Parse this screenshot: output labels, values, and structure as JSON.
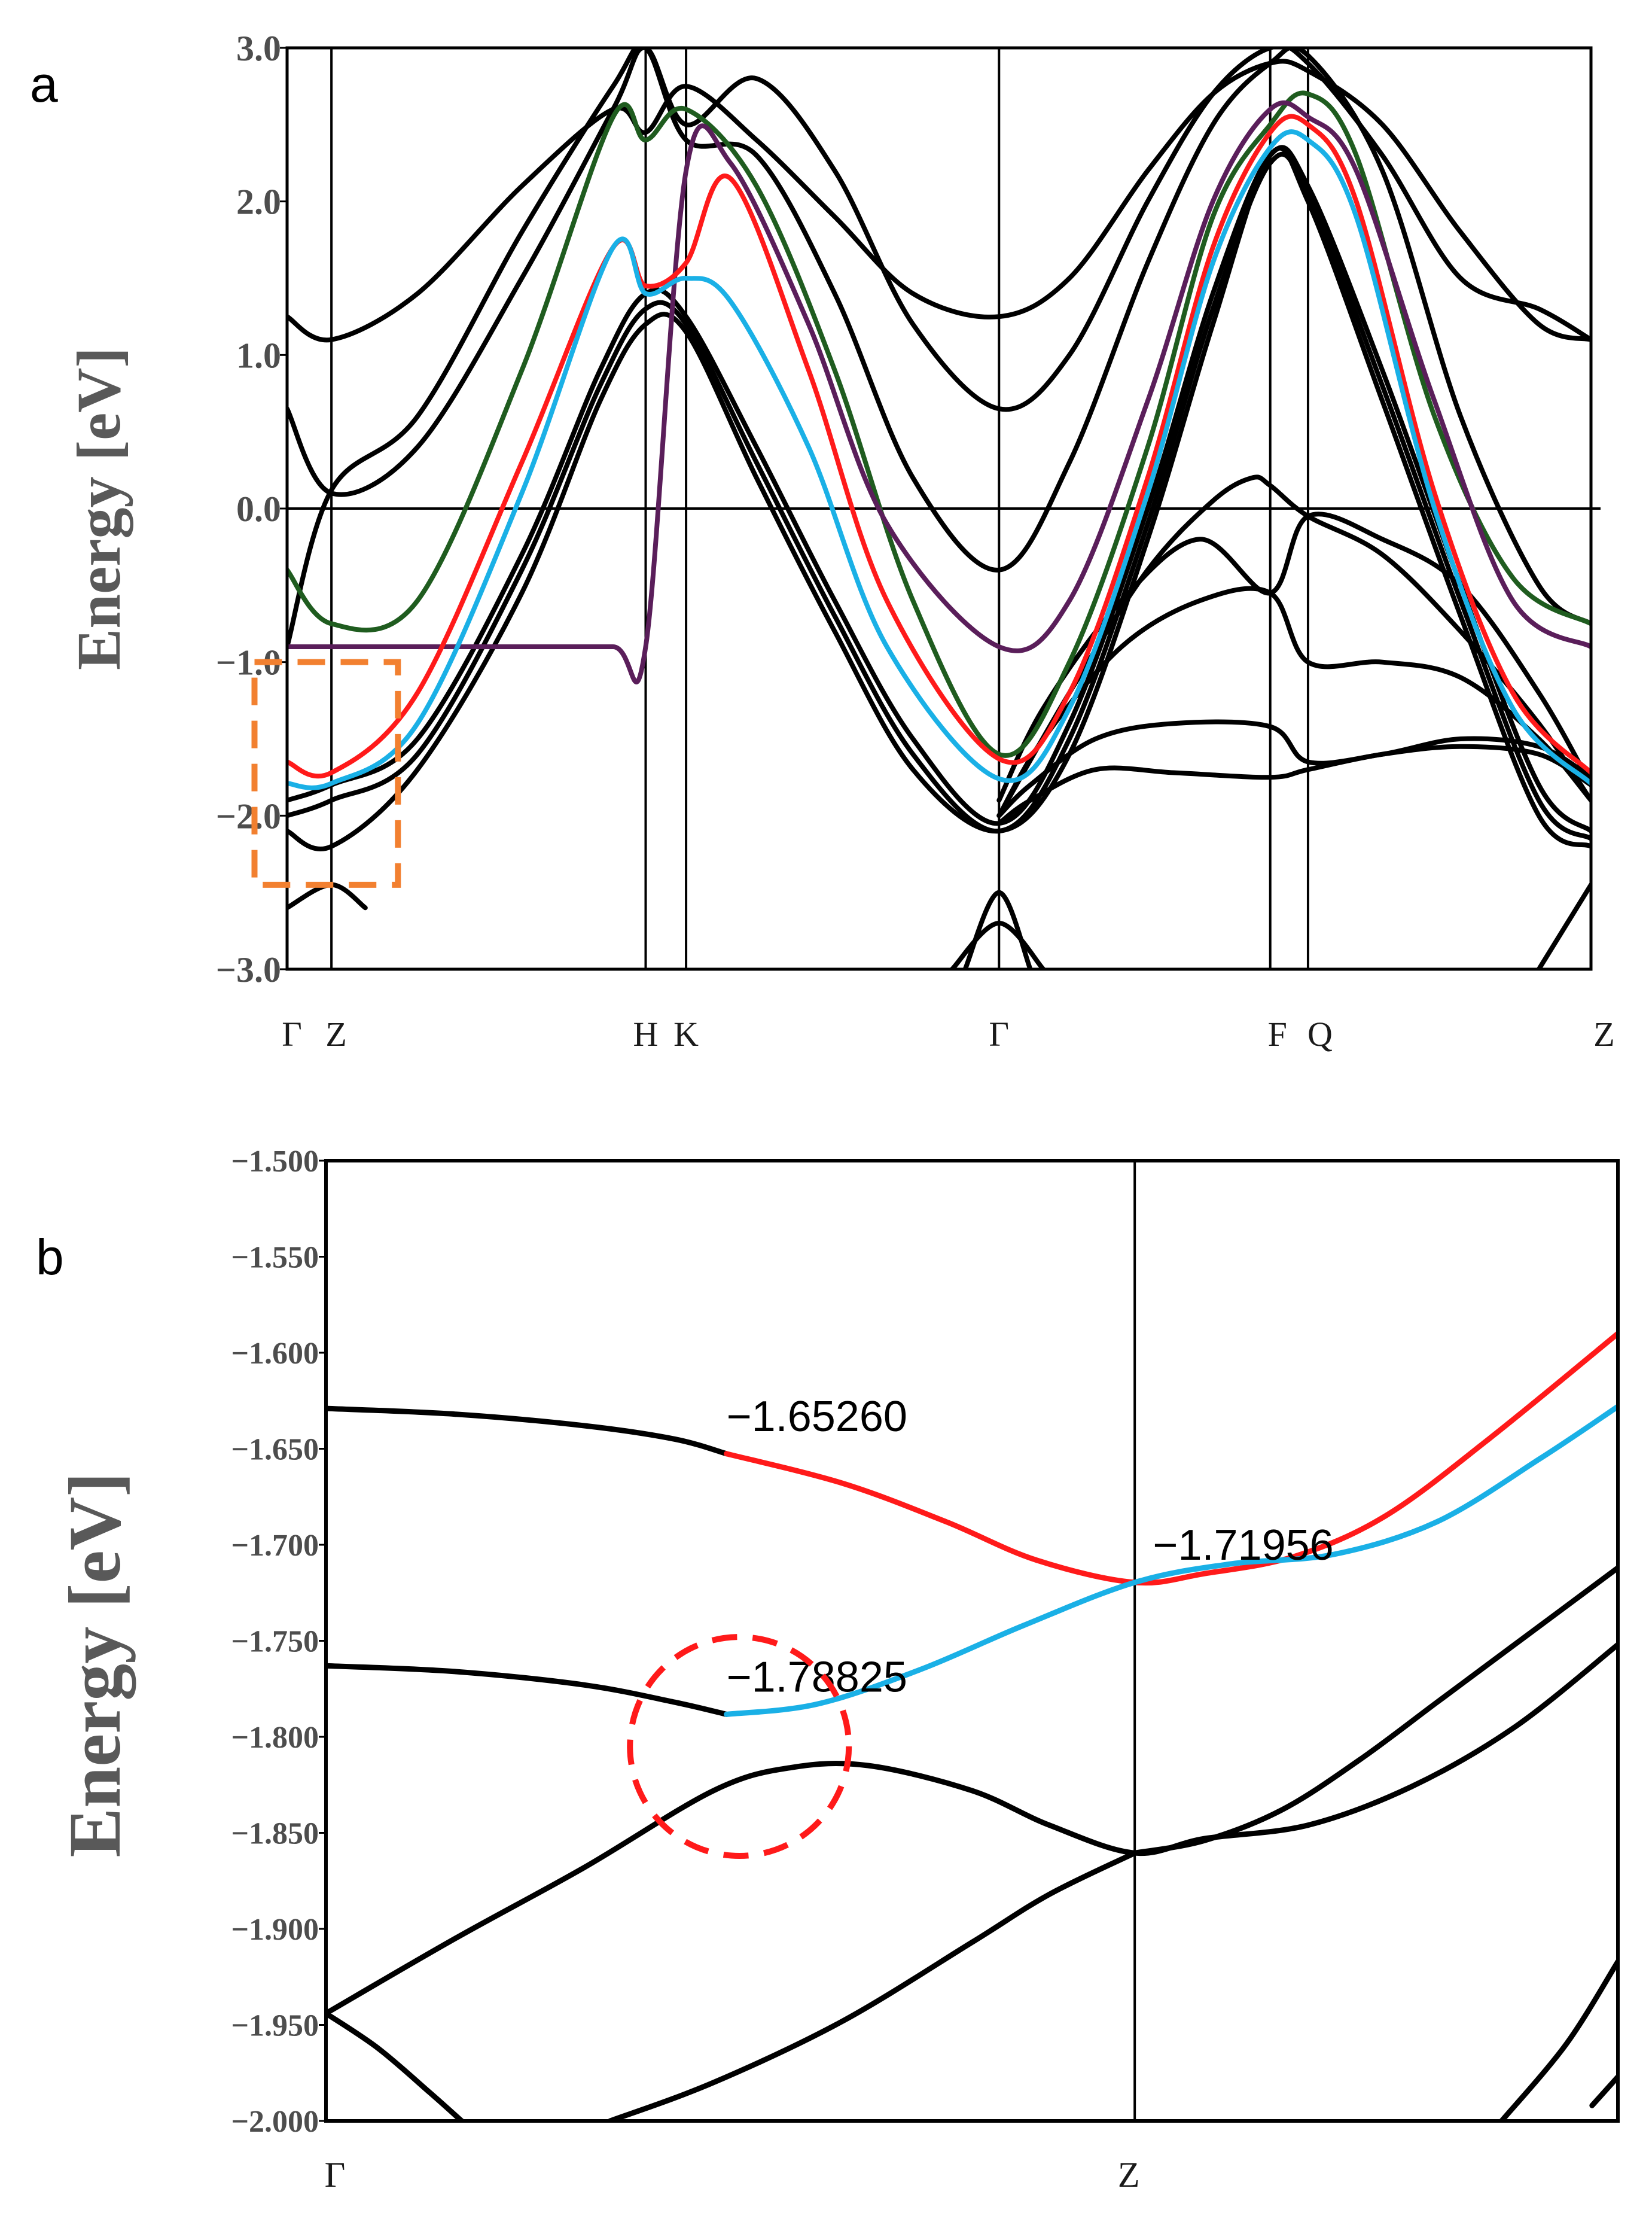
{
  "chart_data": [
    {
      "panel": "a",
      "type": "line",
      "title": "",
      "ylabel": "Energy [eV]",
      "xlabel": "",
      "ylim": [
        -3.0,
        3.0
      ],
      "xlim": [
        0,
        100
      ],
      "y_ticks": [
        "3.0",
        "2.0",
        "1.0",
        "0.0",
        "−1.0",
        "−2.0",
        "−3.0"
      ],
      "y_tick_values": [
        3,
        2,
        1,
        0,
        -1,
        -2,
        -3
      ],
      "k_points": [
        {
          "label": "Γ",
          "x": 0
        },
        {
          "label": "Z",
          "x": 3.4
        },
        {
          "label": "H",
          "x": 27.5
        },
        {
          "label": "K",
          "x": 30.6
        },
        {
          "label": "Γ",
          "x": 54.6
        },
        {
          "label": "F",
          "x": 75.4
        },
        {
          "label": "Q",
          "x": 78.3
        },
        {
          "label": "Z",
          "x": 100
        }
      ],
      "fermi_level": 0.0,
      "series": [
        {
          "name": "band-green",
          "color": "#1f5c1f",
          "x": [
            0,
            3.4,
            10,
            18,
            25,
            27.5,
            30.6,
            36,
            42,
            48,
            54.6,
            60,
            66,
            71,
            75.4,
            78.3,
            82,
            88,
            94,
            100
          ],
          "y": [
            -0.4,
            -0.75,
            -0.6,
            0.9,
            2.55,
            2.4,
            2.6,
            2.1,
            0.9,
            -0.6,
            -1.6,
            -1.0,
            0.4,
            1.9,
            2.5,
            2.7,
            2.3,
            0.6,
            -0.45,
            -0.75
          ]
        },
        {
          "name": "band-purple",
          "color": "#5a1e5a",
          "x": [
            0,
            3.4,
            10,
            18,
            25,
            27.5,
            30.6,
            34,
            40,
            46,
            54.6,
            60,
            66,
            71,
            75.4,
            78.3,
            82,
            88,
            94,
            100
          ],
          "y": [
            -0.9,
            -0.9,
            -0.9,
            -0.9,
            -0.9,
            -0.9,
            2.2,
            2.25,
            1.2,
            -0.1,
            -0.9,
            -0.6,
            0.7,
            2.0,
            2.6,
            2.55,
            2.2,
            0.7,
            -0.6,
            -0.9
          ]
        },
        {
          "name": "band-red",
          "color": "#ff1a1a",
          "x": [
            0,
            3.4,
            10,
            18,
            25,
            27.5,
            30.6,
            34,
            40,
            46,
            54.6,
            60,
            66,
            71,
            75.4,
            78.3,
            82,
            88,
            94,
            100
          ],
          "y": [
            -1.65,
            -1.72,
            -1.2,
            0.3,
            1.7,
            1.45,
            1.6,
            2.15,
            0.9,
            -0.6,
            -1.63,
            -1.2,
            0.2,
            1.7,
            2.45,
            2.5,
            2.0,
            0.1,
            -1.2,
            -1.72
          ]
        },
        {
          "name": "band-blue",
          "color": "#1ab0e6",
          "x": [
            0,
            3.4,
            10,
            18,
            25,
            27.5,
            30.6,
            34,
            40,
            46,
            54.6,
            60,
            66,
            71,
            75.4,
            78.3,
            82,
            88,
            94,
            100
          ],
          "y": [
            -1.79,
            -1.79,
            -1.4,
            0.1,
            1.7,
            1.4,
            1.5,
            1.35,
            0.4,
            -0.9,
            -1.76,
            -1.3,
            0.1,
            1.6,
            2.35,
            2.4,
            1.9,
            0.0,
            -1.3,
            -1.79
          ]
        },
        {
          "name": "band-black-1",
          "color": "#000000",
          "x": [
            0,
            3.4,
            10,
            18,
            25,
            27.5,
            30.6,
            36,
            42,
            48,
            54.6,
            60,
            66,
            71,
            75.4,
            78.3,
            84,
            90,
            96,
            100
          ],
          "y": [
            1.25,
            1.1,
            1.4,
            2.1,
            2.6,
            2.45,
            2.75,
            2.4,
            1.9,
            1.4,
            1.25,
            1.5,
            2.2,
            2.7,
            2.9,
            2.85,
            2.5,
            1.8,
            1.2,
            1.1
          ]
        },
        {
          "name": "band-black-2",
          "color": "#000000",
          "x": [
            0,
            3.4,
            10,
            18,
            25,
            27.5,
            30.6,
            36,
            42,
            48,
            54.6,
            60,
            66,
            71,
            75.4,
            78.3,
            84,
            90,
            96,
            100
          ],
          "y": [
            0.65,
            0.1,
            0.4,
            1.5,
            2.6,
            3.0,
            2.5,
            2.8,
            2.2,
            1.2,
            0.65,
            1.0,
            2.0,
            2.7,
            3.0,
            2.9,
            2.3,
            1.5,
            1.3,
            1.1
          ]
        },
        {
          "name": "band-black-3",
          "color": "#000000",
          "x": [
            0,
            3.4,
            10,
            18,
            25,
            27.5,
            30.6,
            36,
            42,
            48,
            54.6,
            60,
            66,
            71,
            75.4,
            78.3,
            84,
            90,
            96,
            100
          ],
          "y": [
            -0.9,
            0.12,
            0.6,
            1.8,
            2.75,
            3.0,
            2.4,
            2.3,
            1.4,
            0.2,
            -0.4,
            0.3,
            1.6,
            2.5,
            2.9,
            2.95,
            2.2,
            0.6,
            -0.5,
            -0.75
          ]
        },
        {
          "name": "band-black-4",
          "color": "#000000",
          "x": [
            0,
            3.4,
            10,
            18,
            24,
            27.5,
            30.6,
            36,
            42,
            48,
            54.6,
            60,
            66,
            71,
            75.4,
            78.3,
            84,
            90,
            96,
            100
          ],
          "y": [
            -1.9,
            -1.8,
            -1.5,
            -0.3,
            0.9,
            1.4,
            1.25,
            0.4,
            -0.6,
            -1.5,
            -2.05,
            -1.4,
            0.0,
            1.4,
            2.3,
            2.1,
            0.9,
            -0.5,
            -1.8,
            -2.1
          ]
        },
        {
          "name": "band-black-5",
          "color": "#000000",
          "x": [
            0,
            3.4,
            10,
            18,
            24,
            27.5,
            30.6,
            36,
            42,
            48,
            54.6,
            60,
            66,
            71,
            75.4,
            78.3,
            84,
            90,
            96,
            100
          ],
          "y": [
            -2.0,
            -1.9,
            -1.6,
            -0.4,
            0.8,
            1.3,
            1.2,
            0.3,
            -0.7,
            -1.6,
            -2.1,
            -1.5,
            -0.1,
            1.3,
            2.25,
            2.05,
            0.8,
            -0.6,
            -1.9,
            -2.15
          ]
        },
        {
          "name": "band-black-6",
          "color": "#000000",
          "x": [
            0,
            3.4,
            10,
            18,
            24,
            27.5,
            30.6,
            36,
            42,
            48,
            54.6,
            60,
            66,
            71,
            75.4,
            78.3,
            84,
            90,
            96,
            100
          ],
          "y": [
            -2.1,
            -2.2,
            -1.7,
            -0.55,
            0.7,
            1.2,
            1.15,
            0.2,
            -0.8,
            -1.7,
            -2.1,
            -1.6,
            -0.2,
            1.2,
            2.3,
            2.0,
            0.7,
            -0.7,
            -2.0,
            -2.2
          ]
        },
        {
          "name": "band-black-7",
          "color": "#000000",
          "x": [
            54.6,
            57,
            62,
            68,
            75.4,
            78.3,
            84,
            90,
            96,
            100
          ],
          "y": [
            -2.0,
            -1.8,
            -1.5,
            -1.4,
            -1.42,
            -1.65,
            -1.6,
            -1.5,
            -1.55,
            -1.75
          ]
        },
        {
          "name": "band-black-8",
          "color": "#000000",
          "x": [
            54.6,
            57,
            62,
            68,
            75.4,
            78.3,
            84,
            90,
            96,
            100
          ],
          "y": [
            -2.05,
            -1.9,
            -1.7,
            -1.72,
            -1.75,
            -1.7,
            -1.6,
            -1.55,
            -1.6,
            -1.8
          ]
        },
        {
          "name": "band-black-9",
          "color": "#000000",
          "x": [
            54.6,
            58,
            64,
            70,
            75.4,
            78.3,
            84,
            90,
            96,
            100
          ],
          "y": [
            -2.0,
            -1.5,
            -0.9,
            -0.6,
            -0.55,
            -1.0,
            -1.0,
            -1.1,
            -1.5,
            -1.9
          ]
        },
        {
          "name": "band-black-10",
          "color": "#000000",
          "x": [
            54.6,
            58,
            64,
            70,
            75.4,
            78.3,
            84,
            90,
            96,
            100
          ],
          "y": [
            -1.9,
            -1.3,
            -0.6,
            -0.2,
            -0.55,
            -0.05,
            -0.2,
            -0.5,
            -1.2,
            -1.8
          ]
        },
        {
          "name": "band-black-11",
          "color": "#000000",
          "x": [
            54.6,
            60,
            66,
            71,
            74,
            75.4,
            78.3,
            84,
            90,
            96,
            100
          ],
          "y": [
            -2.0,
            -1.2,
            -0.4,
            0.05,
            0.2,
            0.15,
            -0.05,
            -0.3,
            -0.8,
            -1.4,
            -1.9
          ]
        },
        {
          "name": "band-black-12",
          "color": "#000000",
          "x": [
            0,
            3.4,
            6
          ],
          "y": [
            -2.6,
            -2.45,
            -2.6
          ]
        },
        {
          "name": "band-black-13",
          "color": "#000000",
          "x": [
            52,
            54.6,
            57
          ],
          "y": [
            -3.0,
            -2.5,
            -3.0
          ]
        },
        {
          "name": "band-black-14",
          "color": "#000000",
          "x": [
            51,
            54.6,
            58
          ],
          "y": [
            -3.0,
            -2.7,
            -3.0
          ]
        },
        {
          "name": "band-black-15",
          "color": "#000000",
          "x": [
            96,
            100
          ],
          "y": [
            -3.0,
            -2.45
          ]
        }
      ],
      "annotation": {
        "shape": "dashed-rectangle",
        "color": "#f28030",
        "x_range": [
          -2.5,
          8.5
        ],
        "y_range": [
          -2.45,
          -1.0
        ]
      }
    },
    {
      "panel": "b",
      "type": "line",
      "title": "",
      "ylabel": "Energy [eV]",
      "xlabel": "",
      "ylim": [
        -2.0,
        -1.5
      ],
      "xlim": [
        0,
        100
      ],
      "y_ticks": [
        "−1.500",
        "−1.550",
        "−1.600",
        "−1.650",
        "−1.700",
        "−1.750",
        "−1.800",
        "−1.850",
        "−1.900",
        "−1.950",
        "−2.000"
      ],
      "y_tick_values": [
        -1.5,
        -1.55,
        -1.6,
        -1.65,
        -1.7,
        -1.75,
        -1.8,
        -1.85,
        -1.9,
        -1.95,
        -2.0
      ],
      "k_points": [
        {
          "label": "Γ",
          "x": 0
        },
        {
          "label": "Z",
          "x": 62.6
        }
      ],
      "series": [
        {
          "name": "band-upper-black",
          "color": "#000000",
          "x": [
            0,
            10,
            20,
            27,
            31
          ],
          "y": [
            -1.629,
            -1.632,
            -1.638,
            -1.645,
            -1.6526
          ]
        },
        {
          "name": "band-upper-red",
          "color": "#ff1a1a",
          "x": [
            31,
            40,
            48,
            55,
            62.6,
            68,
            75,
            82,
            90,
            100
          ],
          "y": [
            -1.6526,
            -1.668,
            -1.688,
            -1.708,
            -1.7196,
            -1.715,
            -1.706,
            -1.685,
            -1.645,
            -1.59
          ]
        },
        {
          "name": "band-lower-black",
          "color": "#000000",
          "x": [
            0,
            10,
            20,
            27,
            31
          ],
          "y": [
            -1.763,
            -1.766,
            -1.773,
            -1.782,
            -1.7883
          ]
        },
        {
          "name": "band-lower-blue",
          "color": "#1ab0e6",
          "x": [
            31,
            38,
            46,
            54,
            62.6,
            70,
            78,
            86,
            94,
            100
          ],
          "y": [
            -1.7883,
            -1.783,
            -1.765,
            -1.742,
            -1.7196,
            -1.71,
            -1.705,
            -1.688,
            -1.655,
            -1.628
          ]
        },
        {
          "name": "band-black-3",
          "color": "#000000",
          "x": [
            0,
            10,
            20,
            30,
            36,
            42,
            50,
            56,
            62.6,
            68,
            76,
            84,
            92,
            100
          ],
          "y": [
            -1.944,
            -1.905,
            -1.868,
            -1.828,
            -1.816,
            -1.815,
            -1.828,
            -1.846,
            -1.8605,
            -1.853,
            -1.846,
            -1.826,
            -1.795,
            -1.752
          ]
        },
        {
          "name": "band-black-4",
          "color": "#000000",
          "x": [
            62.6,
            68,
            74,
            80,
            86,
            92,
            100
          ],
          "y": [
            -1.8605,
            -1.854,
            -1.838,
            -1.812,
            -1.782,
            -1.752,
            -1.712
          ]
        },
        {
          "name": "band-black-5",
          "color": "#000000",
          "x": [
            22,
            30,
            40,
            50,
            56,
            62.6
          ],
          "y": [
            -2.0,
            -1.98,
            -1.948,
            -1.907,
            -1.882,
            -1.8605
          ]
        },
        {
          "name": "band-black-6",
          "color": "#000000",
          "x": [
            0,
            4,
            8,
            10.5
          ],
          "y": [
            -1.944,
            -1.962,
            -1.985,
            -2.0
          ]
        },
        {
          "name": "band-black-7",
          "color": "#000000",
          "x": [
            91,
            96,
            100
          ],
          "y": [
            -2.0,
            -1.96,
            -1.917
          ]
        },
        {
          "name": "band-black-8",
          "color": "#000000",
          "x": [
            98,
            100
          ],
          "y": [
            -1.992,
            -1.977
          ]
        }
      ],
      "annotations": [
        {
          "text": "−1.65260",
          "x": 31,
          "y": -1.6526
        },
        {
          "text": "−1.71956",
          "x": 64,
          "y": -1.7196
        },
        {
          "text": "−1.78825",
          "x": 31,
          "y": -1.7883
        }
      ],
      "circle": {
        "color": "#ff1a1a",
        "center_x": 32,
        "center_y": -1.805,
        "radius_y": 0.057
      }
    }
  ],
  "panel_labels": {
    "a": "a",
    "b": "b"
  }
}
